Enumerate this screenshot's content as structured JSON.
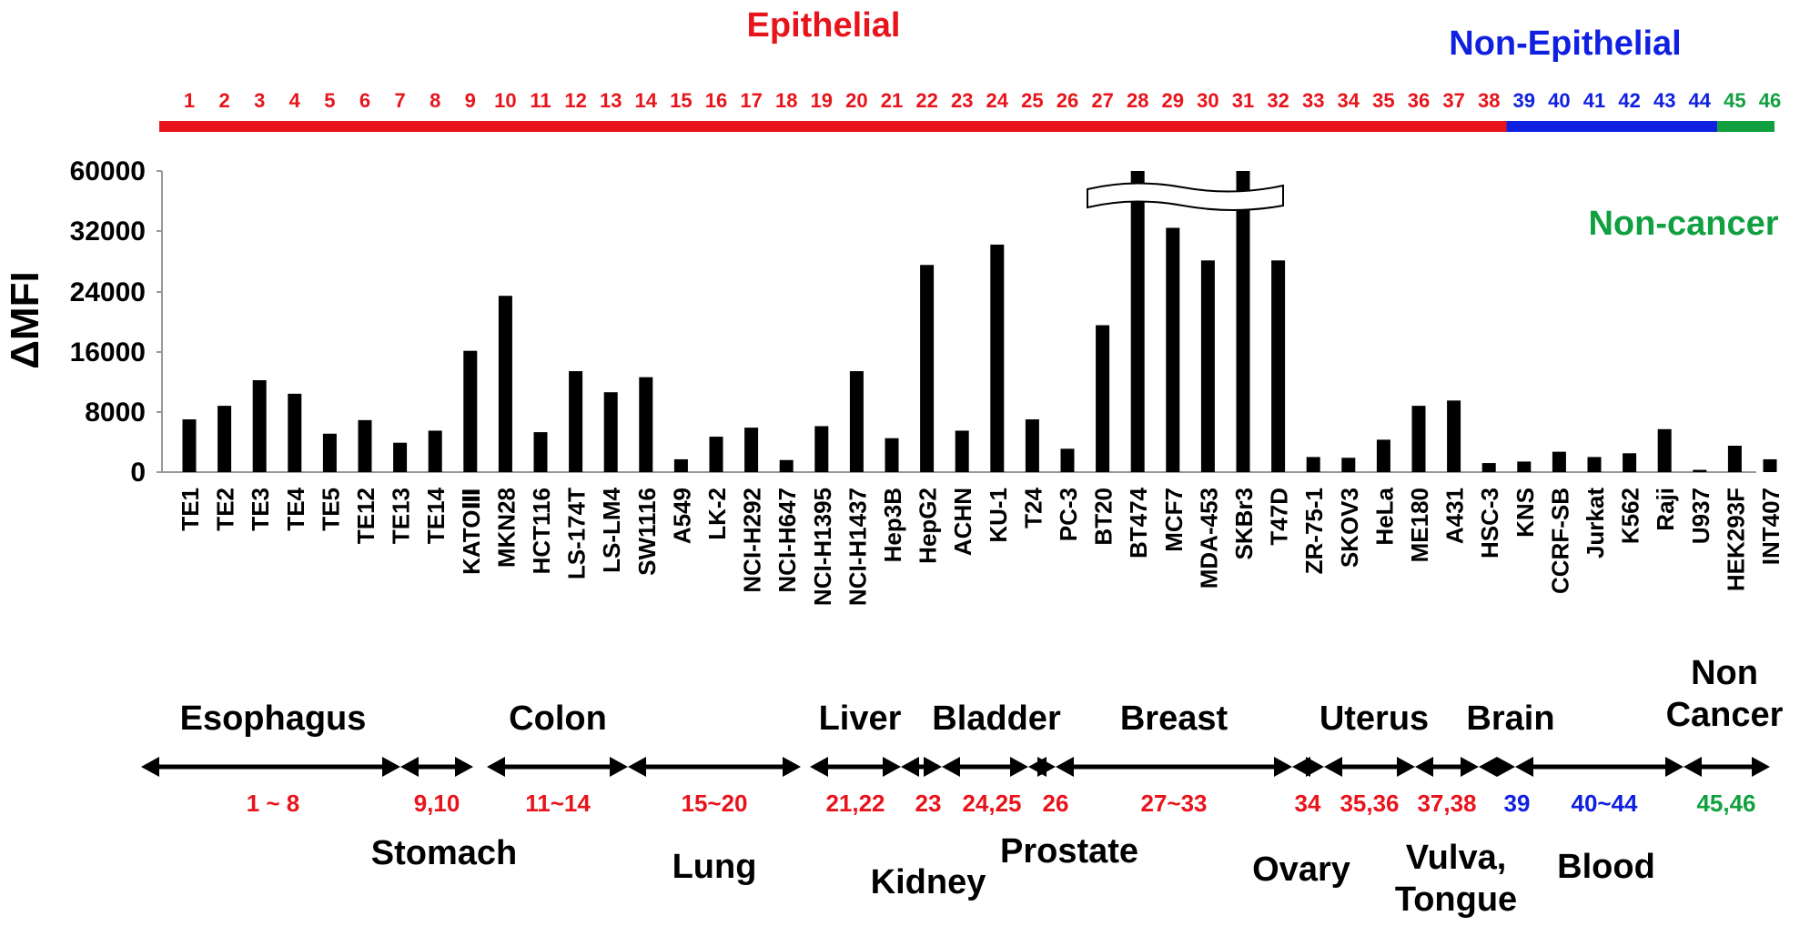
{
  "chart_data": {
    "type": "bar",
    "title": "",
    "xlabel": "",
    "ylabel": "ΔMFI",
    "ylim": [
      0,
      60000
    ],
    "y_ticks": [
      "0",
      "8000",
      "16000",
      "24000",
      "32000",
      "60000"
    ],
    "y_tick_values": [
      0,
      8000,
      16000,
      24000,
      32000,
      60000
    ],
    "axis_break": "between 32000 and 60000",
    "grid": false,
    "legend": "none",
    "categories": [
      "TE1",
      "TE2",
      "TE3",
      "TE4",
      "TE5",
      "TE12",
      "TE13",
      "TE14",
      "KATOⅢ",
      "MKN28",
      "HCT116",
      "LS-174T",
      "LS-LM4",
      "SW1116",
      "A549",
      "LK-2",
      "NCI-H292",
      "NCI-H647",
      "NCI-H1395",
      "NCI-H1437",
      "Hep3B",
      "HepG2",
      "ACHN",
      "KU-1",
      "T24",
      "PC-3",
      "BT20",
      "BT474",
      "MCF7",
      "MDA-453",
      "SKBr3",
      "T47D",
      "ZR-75-1",
      "SKOV3",
      "HeLa",
      "ME180",
      "A431",
      "HSC-3",
      "KNS",
      "CCRF-SB",
      "Jurkat",
      "K562",
      "Raji",
      "U937",
      "HEK293F",
      "INT407"
    ],
    "numbers": [
      "1",
      "2",
      "3",
      "4",
      "5",
      "6",
      "7",
      "8",
      "9",
      "10",
      "11",
      "12",
      "13",
      "14",
      "15",
      "16",
      "17",
      "18",
      "19",
      "20",
      "21",
      "22",
      "23",
      "24",
      "25",
      "26",
      "27",
      "28",
      "29",
      "30",
      "31",
      "32",
      "33",
      "34",
      "35",
      "36",
      "37",
      "38",
      "39",
      "40",
      "41",
      "42",
      "43",
      "44",
      "45",
      "46"
    ],
    "values": [
      7000,
      8800,
      12200,
      10400,
      5100,
      6900,
      3900,
      5500,
      16100,
      23400,
      5300,
      13400,
      10600,
      12600,
      1700,
      4700,
      5900,
      1600,
      6100,
      13400,
      4500,
      27500,
      5500,
      30200,
      7000,
      3100,
      19500,
      60000,
      33500,
      28100,
      60000,
      28100,
      2000,
      1900,
      4300,
      8800,
      9500,
      1200,
      1400,
      2700,
      2000,
      2500,
      5700,
      300,
      3500,
      1700
    ],
    "groups": [
      {
        "name": "Epithelial",
        "color": "#e8141c",
        "from": 1,
        "to": 38
      },
      {
        "name": "Non-Epithelial",
        "color": "#1020e0",
        "from": 39,
        "to": 44
      },
      {
        "name": "Non-cancer",
        "color": "#10a040",
        "from": 45,
        "to": 46
      }
    ],
    "tissues": [
      {
        "name": "Esophagus",
        "range": "1 ~ 8",
        "color": "#e8141c",
        "pos": "above"
      },
      {
        "name": "Stomach",
        "range": "9,10",
        "color": "#e8141c",
        "pos": "below"
      },
      {
        "name": "Colon",
        "range": "11~14",
        "color": "#e8141c",
        "pos": "above"
      },
      {
        "name": "Lung",
        "range": "15~20",
        "color": "#e8141c",
        "pos": "below"
      },
      {
        "name": "Liver",
        "range": "21,22",
        "color": "#e8141c",
        "pos": "above"
      },
      {
        "name": "Kidney",
        "range": "23",
        "color": "#e8141c",
        "pos": "below"
      },
      {
        "name": "Bladder",
        "range": "24,25",
        "color": "#e8141c",
        "pos": "above"
      },
      {
        "name": "Prostate",
        "range": "26",
        "color": "#e8141c",
        "pos": "below"
      },
      {
        "name": "Breast",
        "range": "27~33",
        "color": "#e8141c",
        "pos": "above"
      },
      {
        "name": "Ovary",
        "range": "34",
        "color": "#e8141c",
        "pos": "below"
      },
      {
        "name": "Uterus",
        "range": "35,36",
        "color": "#e8141c",
        "pos": "above"
      },
      {
        "name": "Vulva,\nTongue",
        "range": "37,38",
        "color": "#e8141c",
        "pos": "below"
      },
      {
        "name": "Brain",
        "range": "39",
        "color": "#1020e0",
        "pos": "above"
      },
      {
        "name": "Blood",
        "range": "40~44",
        "color": "#1020e0",
        "pos": "below"
      },
      {
        "name": "Non\nCancer",
        "range": "45,46",
        "color": "#10a040",
        "pos": "above"
      }
    ]
  }
}
